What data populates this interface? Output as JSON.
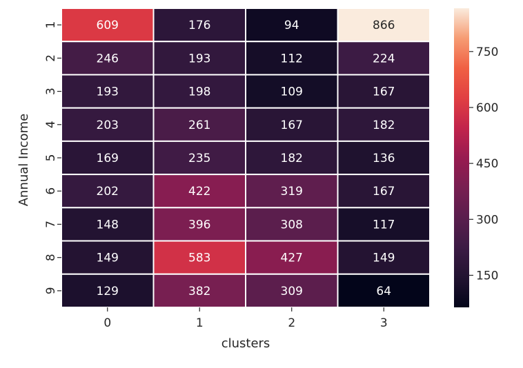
{
  "chart_data": {
    "type": "heatmap",
    "xlabel": "clusters",
    "ylabel": "Annual Income",
    "x_categories": [
      "0",
      "1",
      "2",
      "3"
    ],
    "y_categories": [
      "1",
      "2",
      "3",
      "4",
      "5",
      "6",
      "7",
      "8",
      "9"
    ],
    "values": [
      [
        609,
        176,
        94,
        866
      ],
      [
        246,
        193,
        112,
        224
      ],
      [
        193,
        198,
        109,
        167
      ],
      [
        203,
        261,
        167,
        182
      ],
      [
        169,
        235,
        182,
        136
      ],
      [
        202,
        422,
        319,
        167
      ],
      [
        148,
        396,
        308,
        117
      ],
      [
        149,
        583,
        427,
        149
      ],
      [
        129,
        382,
        309,
        64
      ]
    ],
    "vmin": 64,
    "vmax": 866,
    "colorbar_ticks": [
      "150",
      "300",
      "450",
      "600",
      "750"
    ],
    "colormap": "rocket",
    "grid_line_color": "#ffffff"
  }
}
